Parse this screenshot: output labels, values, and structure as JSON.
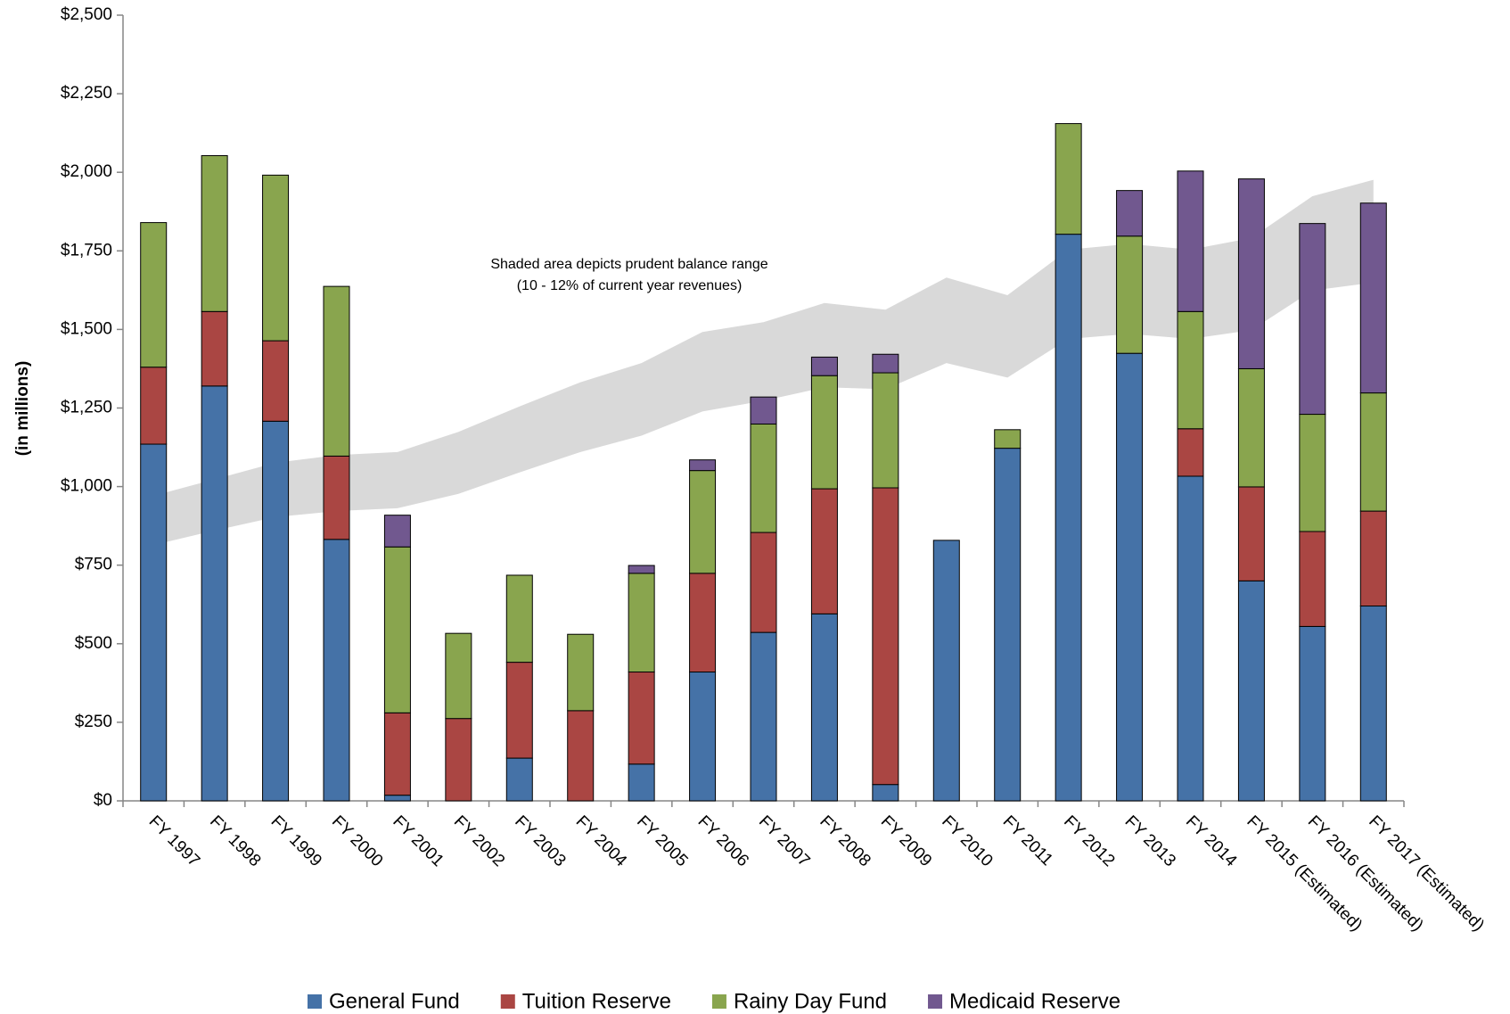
{
  "chart_data": {
    "type": "stacked_bar",
    "y_label": "(in millions)",
    "annotation": [
      "Shaded area depicts prudent balance range",
      "(10 - 12% of current year revenues)"
    ],
    "categories": [
      "FY 1997",
      "FY 1998",
      "FY 1999",
      "FY 2000",
      "FY 2001",
      "FY 2002",
      "FY 2003",
      "FY 2004",
      "FY 2005",
      "FY 2006",
      "FY 2007",
      "FY 2008",
      "FY 2009",
      "FY 2010",
      "FY 2011",
      "FY 2012",
      "FY 2013",
      "FY 2014",
      "FY 2015 (Estimated)",
      "FY 2016 (Estimated)",
      "FY 2017 (Estimated)"
    ],
    "series": [
      {
        "name": "General Fund",
        "color": "#4572a7",
        "values": [
          1135,
          1320,
          1208,
          832,
          18,
          0,
          136,
          0,
          117,
          410,
          536,
          595,
          52,
          829,
          1122,
          1803,
          1424,
          1033,
          700,
          555,
          620
        ]
      },
      {
        "name": "Tuition Reserve",
        "color": "#aa4643",
        "values": [
          245,
          237,
          256,
          265,
          262,
          262,
          305,
          287,
          293,
          314,
          318,
          398,
          944,
          0,
          0,
          0,
          0,
          151,
          299,
          302,
          302
        ]
      },
      {
        "name": "Rainy Day Fund",
        "color": "#89a54e",
        "values": [
          460,
          496,
          527,
          540,
          528,
          271,
          277,
          243,
          314,
          327,
          345,
          360,
          366,
          0,
          59,
          352,
          373,
          373,
          376,
          373,
          376
        ]
      },
      {
        "name": "Medicaid Reserve",
        "color": "#71588f",
        "values": [
          0,
          0,
          0,
          0,
          101,
          0,
          0,
          0,
          25,
          34,
          86,
          59,
          59,
          0,
          0,
          0,
          145,
          447,
          604,
          607,
          604
        ]
      }
    ],
    "band": {
      "color": "#d9d9d9",
      "upper": [
        971,
        1023,
        1076,
        1100,
        1110,
        1174,
        1255,
        1332,
        1393,
        1492,
        1523,
        1584,
        1563,
        1665,
        1609,
        1754,
        1772,
        1754,
        1791,
        1924,
        1976
      ],
      "lower": [
        814,
        860,
        903,
        922,
        931,
        977,
        1045,
        1110,
        1162,
        1239,
        1273,
        1316,
        1310,
        1393,
        1347,
        1470,
        1486,
        1470,
        1498,
        1624,
        1649
      ]
    },
    "ylim": [
      0,
      2500
    ],
    "yticks": [
      {
        "value": 0,
        "label": "$0"
      },
      {
        "value": 250,
        "label": "$250"
      },
      {
        "value": 500,
        "label": "$500"
      },
      {
        "value": 750,
        "label": "$750"
      },
      {
        "value": 1000,
        "label": "$1,000"
      },
      {
        "value": 1250,
        "label": "$1,250"
      },
      {
        "value": 1500,
        "label": "$1,500"
      },
      {
        "value": 1750,
        "label": "$1,750"
      },
      {
        "value": 2000,
        "label": "$2,000"
      },
      {
        "value": 2250,
        "label": "$2,250"
      },
      {
        "value": 2500,
        "label": "$2,500"
      }
    ],
    "grid": false,
    "legend": "bottom"
  }
}
